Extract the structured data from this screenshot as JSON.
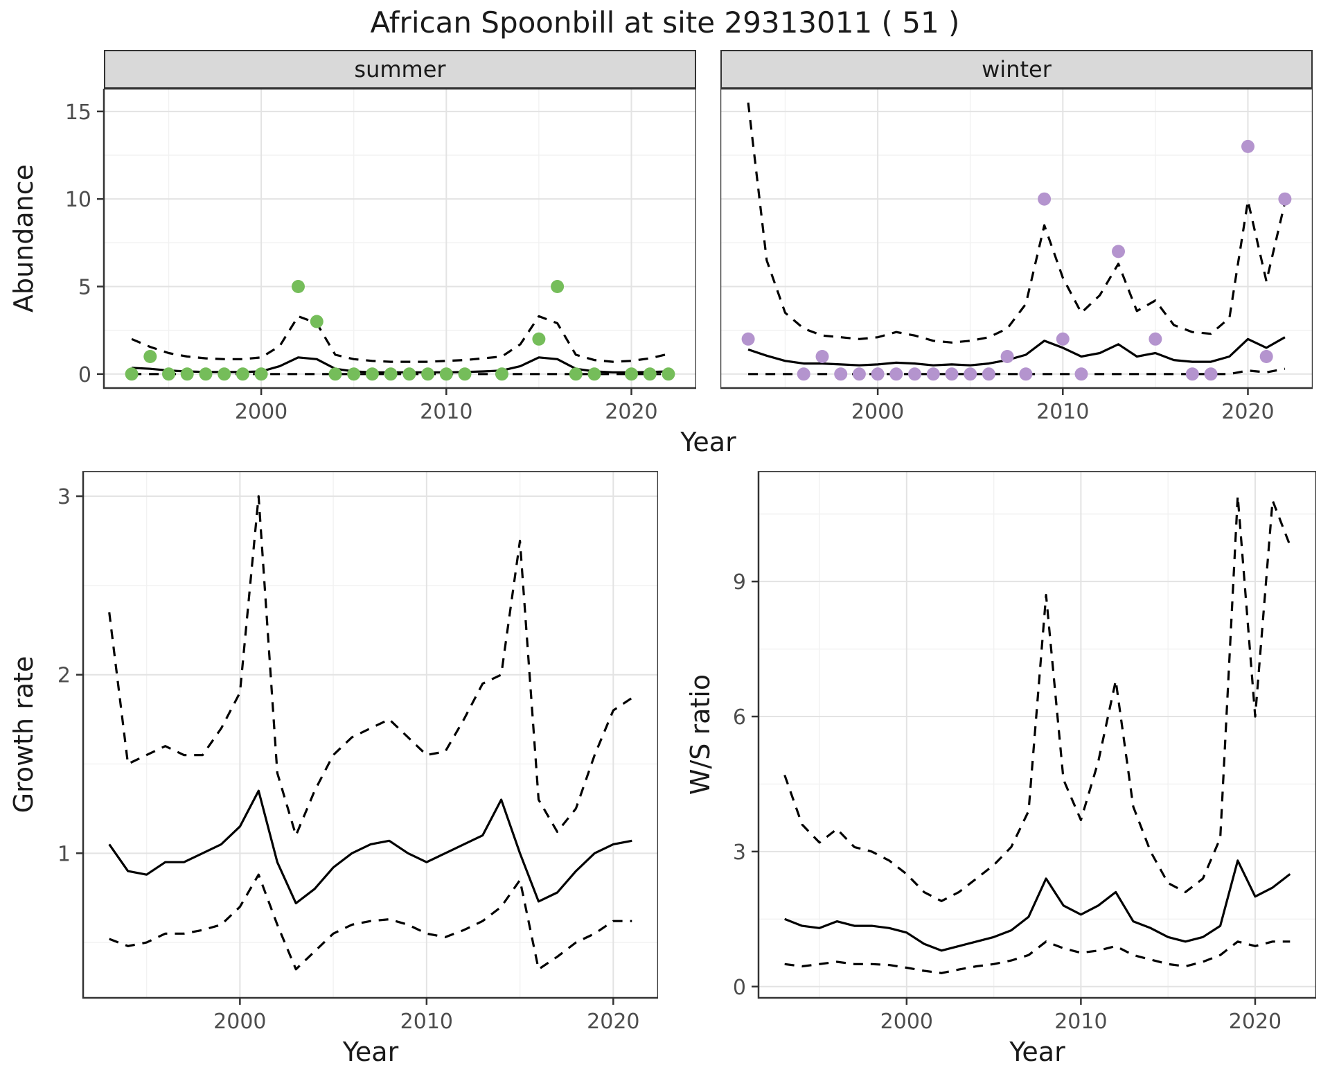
{
  "title": "African Spoonbill at site 29313011 ( 51 )",
  "facets": {
    "summer": "summer",
    "winter": "winter"
  },
  "axis_labels": {
    "abundance": "Abundance",
    "year_top": "Year",
    "growth": "Growth rate",
    "ws": "W/S ratio",
    "year_growth": "Year",
    "year_ws": "Year"
  },
  "colors": {
    "summer_point": "#75bd5a",
    "winter_point": "#b494ce",
    "line": "#000000",
    "grid_major": "#e3e3e3",
    "grid_minor": "#f2f2f2",
    "panel_border": "#333333",
    "strip_bg": "#d9d9d9",
    "tick_text": "#4d4d4d"
  },
  "chart_data": [
    {
      "id": "abundance-summer",
      "type": "line",
      "facet_label": "summer",
      "xlabel": "Year",
      "ylabel": "Abundance",
      "xlim": [
        1991.5,
        2023.5
      ],
      "ylim": [
        -0.8,
        16.3
      ],
      "xticks": [
        2000,
        2010,
        2020
      ],
      "yticks": [
        0,
        5,
        10,
        15
      ],
      "years": [
        1993,
        1994,
        1995,
        1996,
        1997,
        1998,
        1999,
        2000,
        2001,
        2002,
        2003,
        2004,
        2005,
        2006,
        2007,
        2008,
        2009,
        2010,
        2011,
        2012,
        2013,
        2014,
        2015,
        2016,
        2017,
        2018,
        2019,
        2020,
        2021,
        2022
      ],
      "series": [
        {
          "name": "fitted-mean",
          "style": "solid",
          "values": [
            0.35,
            0.3,
            0.2,
            0.15,
            0.12,
            0.12,
            0.12,
            0.15,
            0.45,
            0.95,
            0.85,
            0.3,
            0.15,
            0.1,
            0.1,
            0.1,
            0.1,
            0.1,
            0.12,
            0.15,
            0.2,
            0.45,
            0.95,
            0.85,
            0.3,
            0.15,
            0.1,
            0.1,
            0.12,
            0.15
          ]
        },
        {
          "name": "ci-upper",
          "style": "dashed",
          "values": [
            2.0,
            1.55,
            1.2,
            1.0,
            0.9,
            0.85,
            0.85,
            0.95,
            1.6,
            3.3,
            2.9,
            1.1,
            0.85,
            0.75,
            0.7,
            0.7,
            0.7,
            0.75,
            0.8,
            0.9,
            1.0,
            1.7,
            3.3,
            2.9,
            1.1,
            0.8,
            0.7,
            0.75,
            0.9,
            1.15
          ]
        },
        {
          "name": "ci-lower",
          "style": "dashed",
          "values": [
            0,
            0,
            0,
            0,
            0,
            0,
            0,
            0,
            0,
            0,
            0,
            0,
            0,
            0,
            0,
            0,
            0,
            0,
            0,
            0,
            0,
            0,
            0,
            0,
            0,
            0,
            0,
            0,
            0,
            0
          ]
        }
      ],
      "points": {
        "color": "#75bd5a",
        "x": [
          1993,
          1994,
          1995,
          1996,
          1997,
          1998,
          1999,
          2000,
          2002,
          2003,
          2004,
          2005,
          2006,
          2007,
          2008,
          2009,
          2010,
          2011,
          2013,
          2015,
          2016,
          2017,
          2018,
          2020,
          2021,
          2022
        ],
        "y": [
          0,
          1,
          0,
          0,
          0,
          0,
          0,
          0,
          5,
          3,
          0,
          0,
          0,
          0,
          0,
          0,
          0,
          0,
          0,
          2,
          5,
          0,
          0,
          0,
          0,
          0
        ]
      }
    },
    {
      "id": "abundance-winter",
      "type": "line",
      "facet_label": "winter",
      "xlabel": "Year",
      "ylabel": "Abundance",
      "xlim": [
        1991.5,
        2023.5
      ],
      "ylim": [
        -0.8,
        16.3
      ],
      "xticks": [
        2000,
        2010,
        2020
      ],
      "yticks": [
        0,
        5,
        10,
        15
      ],
      "years": [
        1993,
        1994,
        1995,
        1996,
        1997,
        1998,
        1999,
        2000,
        2001,
        2002,
        2003,
        2004,
        2005,
        2006,
        2007,
        2008,
        2009,
        2010,
        2011,
        2012,
        2013,
        2014,
        2015,
        2016,
        2017,
        2018,
        2019,
        2020,
        2021,
        2022
      ],
      "series": [
        {
          "name": "fitted-mean",
          "style": "solid",
          "values": [
            1.4,
            1.05,
            0.75,
            0.6,
            0.6,
            0.55,
            0.5,
            0.55,
            0.65,
            0.6,
            0.5,
            0.55,
            0.5,
            0.6,
            0.8,
            1.1,
            1.9,
            1.5,
            1.0,
            1.2,
            1.7,
            1.0,
            1.2,
            0.8,
            0.7,
            0.7,
            1.0,
            2.0,
            1.5,
            2.1
          ]
        },
        {
          "name": "ci-upper",
          "style": "dashed",
          "values": [
            15.5,
            6.5,
            3.5,
            2.6,
            2.2,
            2.1,
            2.0,
            2.1,
            2.4,
            2.2,
            1.9,
            1.8,
            1.9,
            2.1,
            2.6,
            4.0,
            8.5,
            5.5,
            3.5,
            4.5,
            6.3,
            3.6,
            4.2,
            2.8,
            2.4,
            2.3,
            3.2,
            9.9,
            5.3,
            9.8
          ]
        },
        {
          "name": "ci-lower",
          "style": "dashed",
          "values": [
            0,
            0,
            0,
            0,
            0,
            0,
            0,
            0,
            0,
            0,
            0,
            0,
            0,
            0,
            0,
            0,
            0,
            0,
            0,
            0,
            0,
            0,
            0,
            0,
            0,
            0,
            0,
            0.2,
            0.1,
            0.3
          ]
        }
      ],
      "points": {
        "color": "#b494ce",
        "x": [
          1993,
          1996,
          1997,
          1998,
          1999,
          2000,
          2001,
          2002,
          2003,
          2004,
          2005,
          2006,
          2007,
          2008,
          2009,
          2010,
          2011,
          2013,
          2015,
          2017,
          2018,
          2020,
          2021,
          2022
        ],
        "y": [
          2,
          0,
          1,
          0,
          0,
          0,
          0,
          0,
          0,
          0,
          0,
          0,
          1,
          0,
          10,
          2,
          0,
          7,
          2,
          0,
          0,
          13,
          1,
          10
        ]
      }
    },
    {
      "id": "growth-rate",
      "type": "line",
      "facet_label": null,
      "xlabel": "Year",
      "ylabel": "Growth rate",
      "xlim": [
        1991.6,
        2022.4
      ],
      "ylim": [
        0.19,
        3.14
      ],
      "xticks": [
        2000,
        2010,
        2020
      ],
      "yticks": [
        1,
        2,
        3
      ],
      "years": [
        1993,
        1994,
        1995,
        1996,
        1997,
        1998,
        1999,
        2000,
        2001,
        2002,
        2003,
        2004,
        2005,
        2006,
        2007,
        2008,
        2009,
        2010,
        2011,
        2012,
        2013,
        2014,
        2015,
        2016,
        2017,
        2018,
        2019,
        2020,
        2021
      ],
      "series": [
        {
          "name": "fitted-mean",
          "style": "solid",
          "values": [
            1.05,
            0.9,
            0.88,
            0.95,
            0.95,
            1.0,
            1.05,
            1.15,
            1.35,
            0.95,
            0.72,
            0.8,
            0.92,
            1.0,
            1.05,
            1.07,
            1.0,
            0.95,
            1.0,
            1.05,
            1.1,
            1.3,
            1.0,
            0.73,
            0.78,
            0.9,
            1.0,
            1.05,
            1.07
          ]
        },
        {
          "name": "ci-upper",
          "style": "dashed",
          "values": [
            2.35,
            1.5,
            1.55,
            1.6,
            1.55,
            1.55,
            1.7,
            1.9,
            3.0,
            1.45,
            1.1,
            1.35,
            1.55,
            1.65,
            1.7,
            1.75,
            1.65,
            1.55,
            1.57,
            1.75,
            1.95,
            2.0,
            2.75,
            1.3,
            1.12,
            1.25,
            1.55,
            1.8,
            1.87
          ]
        },
        {
          "name": "ci-lower",
          "style": "dashed",
          "values": [
            0.52,
            0.48,
            0.5,
            0.55,
            0.55,
            0.57,
            0.6,
            0.7,
            0.88,
            0.6,
            0.35,
            0.45,
            0.55,
            0.6,
            0.62,
            0.63,
            0.6,
            0.55,
            0.53,
            0.57,
            0.62,
            0.7,
            0.85,
            0.35,
            0.42,
            0.5,
            0.55,
            0.62,
            0.62
          ]
        }
      ]
    },
    {
      "id": "ws-ratio",
      "type": "line",
      "facet_label": null,
      "xlabel": "Year",
      "ylabel": "W/S ratio",
      "xlim": [
        1991.5,
        2023.5
      ],
      "ylim": [
        -0.25,
        11.45
      ],
      "xticks": [
        2000,
        2010,
        2020
      ],
      "yticks": [
        0,
        3,
        6,
        9
      ],
      "years": [
        1993,
        1994,
        1995,
        1996,
        1997,
        1998,
        1999,
        2000,
        2001,
        2002,
        2003,
        2004,
        2005,
        2006,
        2007,
        2008,
        2009,
        2010,
        2011,
        2012,
        2013,
        2014,
        2015,
        2016,
        2017,
        2018,
        2019,
        2020,
        2021,
        2022
      ],
      "series": [
        {
          "name": "fitted-mean",
          "style": "solid",
          "values": [
            1.5,
            1.35,
            1.3,
            1.45,
            1.35,
            1.35,
            1.3,
            1.2,
            0.95,
            0.8,
            0.9,
            1.0,
            1.1,
            1.25,
            1.55,
            2.4,
            1.8,
            1.6,
            1.8,
            2.1,
            1.45,
            1.3,
            1.1,
            1.0,
            1.1,
            1.35,
            2.8,
            2.0,
            2.2,
            2.5
          ]
        },
        {
          "name": "ci-upper",
          "style": "dashed",
          "values": [
            4.7,
            3.6,
            3.2,
            3.5,
            3.1,
            3.0,
            2.8,
            2.5,
            2.1,
            1.9,
            2.1,
            2.4,
            2.7,
            3.1,
            3.9,
            8.7,
            4.6,
            3.7,
            5.0,
            6.8,
            4.0,
            3.0,
            2.3,
            2.1,
            2.4,
            3.3,
            10.9,
            6.0,
            10.8,
            9.8
          ]
        },
        {
          "name": "ci-lower",
          "style": "dashed",
          "values": [
            0.5,
            0.45,
            0.5,
            0.55,
            0.5,
            0.5,
            0.48,
            0.42,
            0.35,
            0.3,
            0.38,
            0.45,
            0.5,
            0.58,
            0.7,
            1.0,
            0.85,
            0.75,
            0.8,
            0.9,
            0.7,
            0.6,
            0.5,
            0.45,
            0.55,
            0.7,
            1.0,
            0.9,
            1.0,
            1.0
          ]
        }
      ]
    }
  ]
}
